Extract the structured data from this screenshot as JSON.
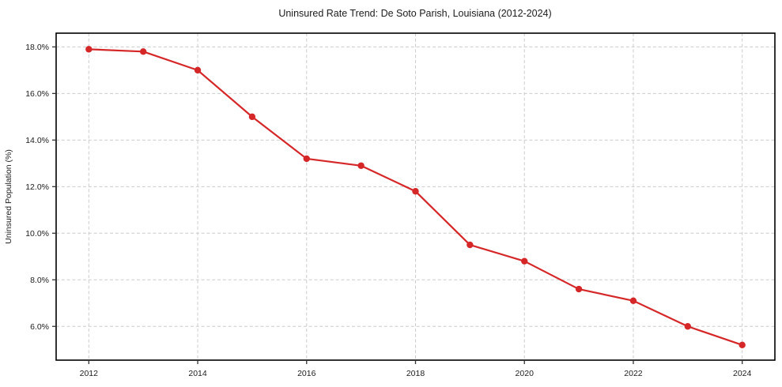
{
  "chart_data": {
    "type": "line",
    "title": "Uninsured Rate Trend: De Soto Parish, Louisiana (2012-2024)",
    "xlabel": "",
    "ylabel": "Uninsured Population (%)",
    "x": [
      2012,
      2013,
      2014,
      2015,
      2016,
      2017,
      2018,
      2019,
      2020,
      2021,
      2022,
      2023,
      2024
    ],
    "series": [
      {
        "name": "Uninsured Population (%)",
        "values": [
          17.9,
          17.8,
          17.0,
          15.0,
          13.2,
          12.9,
          11.8,
          9.5,
          8.8,
          7.6,
          7.1,
          6.0,
          5.2
        ]
      }
    ],
    "xticks": {
      "values": [
        2012,
        2014,
        2016,
        2018,
        2020,
        2022,
        2024
      ],
      "labels": [
        "2012",
        "2014",
        "2016",
        "2018",
        "2020",
        "2022",
        "2024"
      ]
    },
    "yticks": {
      "values": [
        6,
        8,
        10,
        12,
        14,
        16,
        18
      ],
      "labels": [
        "6.0%",
        "8.0%",
        "10.0%",
        "12.0%",
        "14.0%",
        "16.0%",
        "18.0%"
      ]
    },
    "xlim": [
      2011.4,
      2024.6
    ],
    "ylim": [
      4.55,
      18.59
    ],
    "grid": true,
    "grid_style": "dashed",
    "legend": false,
    "colors": {
      "line": "#d62728",
      "marker": "#d62728",
      "grid": "#cccccc",
      "spine": "#000000",
      "tick": "#333333",
      "text": "#1c1c1c",
      "background": "#ffffff"
    }
  }
}
